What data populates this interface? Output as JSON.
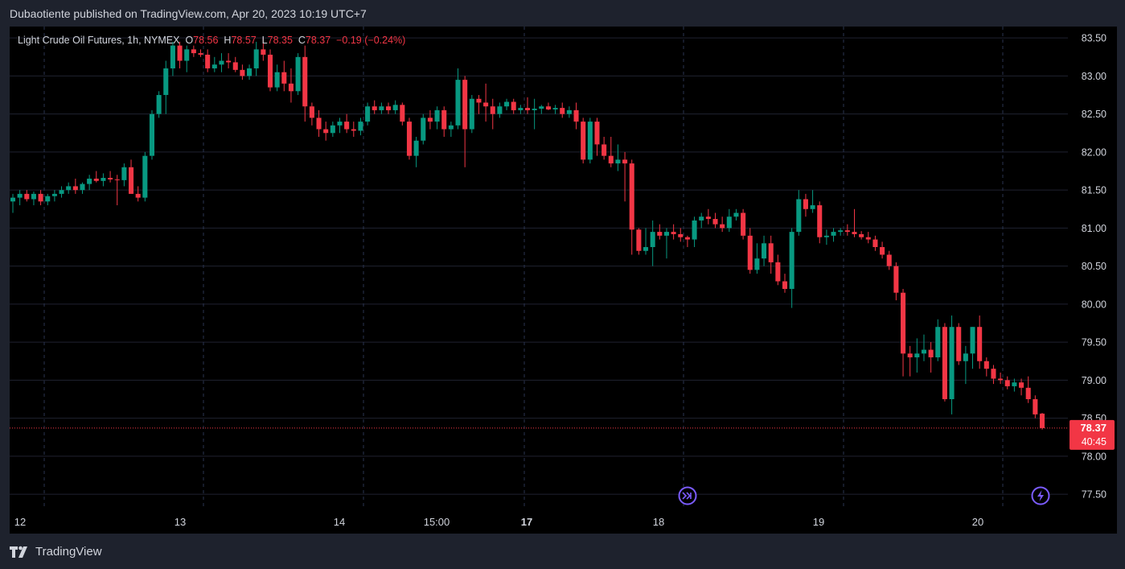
{
  "header": {
    "published_text": "Dubaotiente published on TradingView.com, Apr 20, 2023 10:19 UTC+7"
  },
  "legend": {
    "title": "Light Crude Oil Futures, 1h, NYMEX",
    "o_label": "O",
    "o_value": "78.56",
    "h_label": "H",
    "h_value": "78.57",
    "l_label": "L",
    "l_value": "78.35",
    "c_label": "C",
    "c_value": "78.37",
    "change": "−0.19 (−0.24%)"
  },
  "price_label": {
    "price": "78.37",
    "countdown": "40:45"
  },
  "footer": {
    "brand": "TradingView"
  },
  "colors": {
    "background": "#000000",
    "page": "#1e222d",
    "up": "#089981",
    "down": "#f23645",
    "grid": "#1f2230",
    "separator": "#2a3450",
    "event_icon": "#7b5cff"
  },
  "icons": [
    "dividend-event-icon",
    "earnings-event-icon",
    "tradingview-logo-icon"
  ],
  "chart_data": {
    "type": "candlestick",
    "title": "Light Crude Oil Futures, 1h, NYMEX",
    "ylim": [
      77.3,
      83.65
    ],
    "y_ticks": [
      "83.50",
      "83.00",
      "82.50",
      "82.00",
      "81.50",
      "81.00",
      "80.50",
      "80.00",
      "79.50",
      "79.00",
      "78.50",
      "78.00",
      "77.50"
    ],
    "x_ticks": [
      {
        "label": "12",
        "bold": false
      },
      {
        "label": "13",
        "bold": false
      },
      {
        "label": "14",
        "bold": false
      },
      {
        "label": "15:00",
        "bold": false
      },
      {
        "label": "17",
        "bold": true
      },
      {
        "label": "18",
        "bold": false
      },
      {
        "label": "19",
        "bold": false
      },
      {
        "label": "20",
        "bold": false
      }
    ],
    "last_price": 78.37,
    "grid": true,
    "candles": [
      [
        81.35,
        81.45,
        81.2,
        81.4
      ],
      [
        81.4,
        81.5,
        81.3,
        81.45
      ],
      [
        81.45,
        81.5,
        81.35,
        81.38
      ],
      [
        81.38,
        81.48,
        81.3,
        81.45
      ],
      [
        81.45,
        81.5,
        81.3,
        81.35
      ],
      [
        81.35,
        81.45,
        81.3,
        81.42
      ],
      [
        81.42,
        81.5,
        81.35,
        81.45
      ],
      [
        81.45,
        81.55,
        81.4,
        81.5
      ],
      [
        81.5,
        81.6,
        81.45,
        81.55
      ],
      [
        81.55,
        81.65,
        81.45,
        81.5
      ],
      [
        81.5,
        81.6,
        81.45,
        81.58
      ],
      [
        81.58,
        81.7,
        81.5,
        81.65
      ],
      [
        81.65,
        81.75,
        81.6,
        81.62
      ],
      [
        81.62,
        81.72,
        81.55,
        81.66
      ],
      [
        81.66,
        81.75,
        81.6,
        81.64
      ],
      [
        81.64,
        81.7,
        81.3,
        81.63
      ],
      [
        81.63,
        81.85,
        81.55,
        81.8
      ],
      [
        81.8,
        81.9,
        81.45,
        81.45
      ],
      [
        81.45,
        81.55,
        81.35,
        81.4
      ],
      [
        81.4,
        82.0,
        81.35,
        81.95
      ],
      [
        81.95,
        82.55,
        81.9,
        82.5
      ],
      [
        82.5,
        82.8,
        82.45,
        82.75
      ],
      [
        82.75,
        83.2,
        82.5,
        83.1
      ],
      [
        83.1,
        83.45,
        83.0,
        83.4
      ],
      [
        83.4,
        83.45,
        83.1,
        83.2
      ],
      [
        83.2,
        83.4,
        83.05,
        83.35
      ],
      [
        83.35,
        83.4,
        83.25,
        83.3
      ],
      [
        83.3,
        83.35,
        83.25,
        83.28
      ],
      [
        83.28,
        83.35,
        83.05,
        83.1
      ],
      [
        83.1,
        83.25,
        83.05,
        83.15
      ],
      [
        83.15,
        83.3,
        83.05,
        83.2
      ],
      [
        83.2,
        83.3,
        83.1,
        83.18
      ],
      [
        83.18,
        83.25,
        83.05,
        83.08
      ],
      [
        83.08,
        83.15,
        82.95,
        83.0
      ],
      [
        83.0,
        83.15,
        82.95,
        83.1
      ],
      [
        83.1,
        83.45,
        83.0,
        83.35
      ],
      [
        83.35,
        83.5,
        83.2,
        83.28
      ],
      [
        83.28,
        83.35,
        82.8,
        82.85
      ],
      [
        82.85,
        83.15,
        82.8,
        83.05
      ],
      [
        83.05,
        83.2,
        82.8,
        82.9
      ],
      [
        82.9,
        83.1,
        82.65,
        82.8
      ],
      [
        82.8,
        83.3,
        82.75,
        83.25
      ],
      [
        83.25,
        83.4,
        82.4,
        82.6
      ],
      [
        82.6,
        82.65,
        82.35,
        82.45
      ],
      [
        82.45,
        82.55,
        82.2,
        82.3
      ],
      [
        82.3,
        82.4,
        82.15,
        82.25
      ],
      [
        82.25,
        82.4,
        82.2,
        82.35
      ],
      [
        82.35,
        82.45,
        82.25,
        82.4
      ],
      [
        82.4,
        82.5,
        82.25,
        82.3
      ],
      [
        82.3,
        82.4,
        82.2,
        82.28
      ],
      [
        82.28,
        82.45,
        82.22,
        82.4
      ],
      [
        82.4,
        82.65,
        82.35,
        82.6
      ],
      [
        82.6,
        82.68,
        82.5,
        82.55
      ],
      [
        82.55,
        82.65,
        82.5,
        82.6
      ],
      [
        82.6,
        82.65,
        82.5,
        82.55
      ],
      [
        82.55,
        82.68,
        82.5,
        82.62
      ],
      [
        82.62,
        82.65,
        82.35,
        82.4
      ],
      [
        82.4,
        82.45,
        81.9,
        81.95
      ],
      [
        81.95,
        82.2,
        81.8,
        82.15
      ],
      [
        82.15,
        82.5,
        82.1,
        82.45
      ],
      [
        82.45,
        82.55,
        82.3,
        82.4
      ],
      [
        82.4,
        82.6,
        82.3,
        82.55
      ],
      [
        82.55,
        82.6,
        82.2,
        82.3
      ],
      [
        82.3,
        82.4,
        82.2,
        82.35
      ],
      [
        82.35,
        83.1,
        82.3,
        82.95
      ],
      [
        82.95,
        83.0,
        81.8,
        82.3
      ],
      [
        82.3,
        82.75,
        82.25,
        82.7
      ],
      [
        82.7,
        82.75,
        82.5,
        82.65
      ],
      [
        82.65,
        82.9,
        82.4,
        82.6
      ],
      [
        82.6,
        82.7,
        82.3,
        82.5
      ],
      [
        82.5,
        82.65,
        82.45,
        82.6
      ],
      [
        82.6,
        82.7,
        82.55,
        82.66
      ],
      [
        82.66,
        82.7,
        82.5,
        82.55
      ],
      [
        82.55,
        82.62,
        82.5,
        82.58
      ],
      [
        82.58,
        82.72,
        82.5,
        82.55
      ],
      [
        82.55,
        82.7,
        82.3,
        82.57
      ],
      [
        82.57,
        82.62,
        82.5,
        82.6
      ],
      [
        82.6,
        82.65,
        82.55,
        82.56
      ],
      [
        82.56,
        82.62,
        82.5,
        82.58
      ],
      [
        82.58,
        82.65,
        82.45,
        82.5
      ],
      [
        82.5,
        82.6,
        82.45,
        82.55
      ],
      [
        82.55,
        82.65,
        82.3,
        82.4
      ],
      [
        82.4,
        82.45,
        81.85,
        81.9
      ],
      [
        81.9,
        82.45,
        81.85,
        82.4
      ],
      [
        82.4,
        82.45,
        81.95,
        82.1
      ],
      [
        82.1,
        82.2,
        81.9,
        81.95
      ],
      [
        81.95,
        82.2,
        81.8,
        81.85
      ],
      [
        81.85,
        82.1,
        81.75,
        81.9
      ],
      [
        81.9,
        82.0,
        81.35,
        81.85
      ],
      [
        81.85,
        81.9,
        80.65,
        80.98
      ],
      [
        80.98,
        81.0,
        80.65,
        80.7
      ],
      [
        80.7,
        81.0,
        80.65,
        80.75
      ],
      [
        80.75,
        81.1,
        80.5,
        80.95
      ],
      [
        80.95,
        81.05,
        80.85,
        80.9
      ],
      [
        80.9,
        81.0,
        80.6,
        80.95
      ],
      [
        80.95,
        81.05,
        80.85,
        80.92
      ],
      [
        80.92,
        81.0,
        80.82,
        80.88
      ],
      [
        80.88,
        80.9,
        80.75,
        80.85
      ],
      [
        80.85,
        81.15,
        80.75,
        81.1
      ],
      [
        81.1,
        81.2,
        81.0,
        81.15
      ],
      [
        81.15,
        81.25,
        81.05,
        81.12
      ],
      [
        81.12,
        81.2,
        81.0,
        81.05
      ],
      [
        81.05,
        81.15,
        80.95,
        81.0
      ],
      [
        81.0,
        81.25,
        80.95,
        81.15
      ],
      [
        81.15,
        81.25,
        81.1,
        81.2
      ],
      [
        81.2,
        81.25,
        80.85,
        80.9
      ],
      [
        80.9,
        81.0,
        80.4,
        80.45
      ],
      [
        80.45,
        80.8,
        80.4,
        80.6
      ],
      [
        80.6,
        80.9,
        80.5,
        80.8
      ],
      [
        80.8,
        80.9,
        80.4,
        80.55
      ],
      [
        80.55,
        80.65,
        80.25,
        80.3
      ],
      [
        80.3,
        80.4,
        80.15,
        80.2
      ],
      [
        80.2,
        81.0,
        79.95,
        80.95
      ],
      [
        80.95,
        81.5,
        80.9,
        81.38
      ],
      [
        81.38,
        81.45,
        81.15,
        81.25
      ],
      [
        81.25,
        81.5,
        81.2,
        81.3
      ],
      [
        81.3,
        81.35,
        80.8,
        80.88
      ],
      [
        80.88,
        80.98,
        80.78,
        80.9
      ],
      [
        80.9,
        81.0,
        80.82,
        80.95
      ],
      [
        80.95,
        81.0,
        80.9,
        80.97
      ],
      [
        80.97,
        81.05,
        80.9,
        80.95
      ],
      [
        80.95,
        81.25,
        80.88,
        80.92
      ],
      [
        80.92,
        80.96,
        80.85,
        80.88
      ],
      [
        80.88,
        80.95,
        80.8,
        80.85
      ],
      [
        80.85,
        80.9,
        80.7,
        80.75
      ],
      [
        80.75,
        80.82,
        80.6,
        80.65
      ],
      [
        80.65,
        80.7,
        80.45,
        80.5
      ],
      [
        80.5,
        80.55,
        80.05,
        80.15
      ],
      [
        80.15,
        80.2,
        79.05,
        79.35
      ],
      [
        79.35,
        79.45,
        79.05,
        79.3
      ],
      [
        79.3,
        79.55,
        79.1,
        79.35
      ],
      [
        79.35,
        79.6,
        79.25,
        79.4
      ],
      [
        79.4,
        79.5,
        79.1,
        79.3
      ],
      [
        79.3,
        79.8,
        79.25,
        79.7
      ],
      [
        79.7,
        79.75,
        78.72,
        78.75
      ],
      [
        78.75,
        79.85,
        78.55,
        79.7
      ],
      [
        79.7,
        79.75,
        79.2,
        79.25
      ],
      [
        79.25,
        79.45,
        78.95,
        79.35
      ],
      [
        79.35,
        79.7,
        79.15,
        79.7
      ],
      [
        79.7,
        79.85,
        79.15,
        79.25
      ],
      [
        79.25,
        79.3,
        79.05,
        79.15
      ],
      [
        79.15,
        79.2,
        78.95,
        79.02
      ],
      [
        79.02,
        79.1,
        78.95,
        79.0
      ],
      [
        79.0,
        79.05,
        78.88,
        78.92
      ],
      [
        78.92,
        79.02,
        78.85,
        78.97
      ],
      [
        78.97,
        79.02,
        78.8,
        78.9
      ],
      [
        78.9,
        79.05,
        78.7,
        78.75
      ],
      [
        78.75,
        78.8,
        78.5,
        78.55
      ],
      [
        78.56,
        78.57,
        78.35,
        78.37
      ]
    ]
  }
}
